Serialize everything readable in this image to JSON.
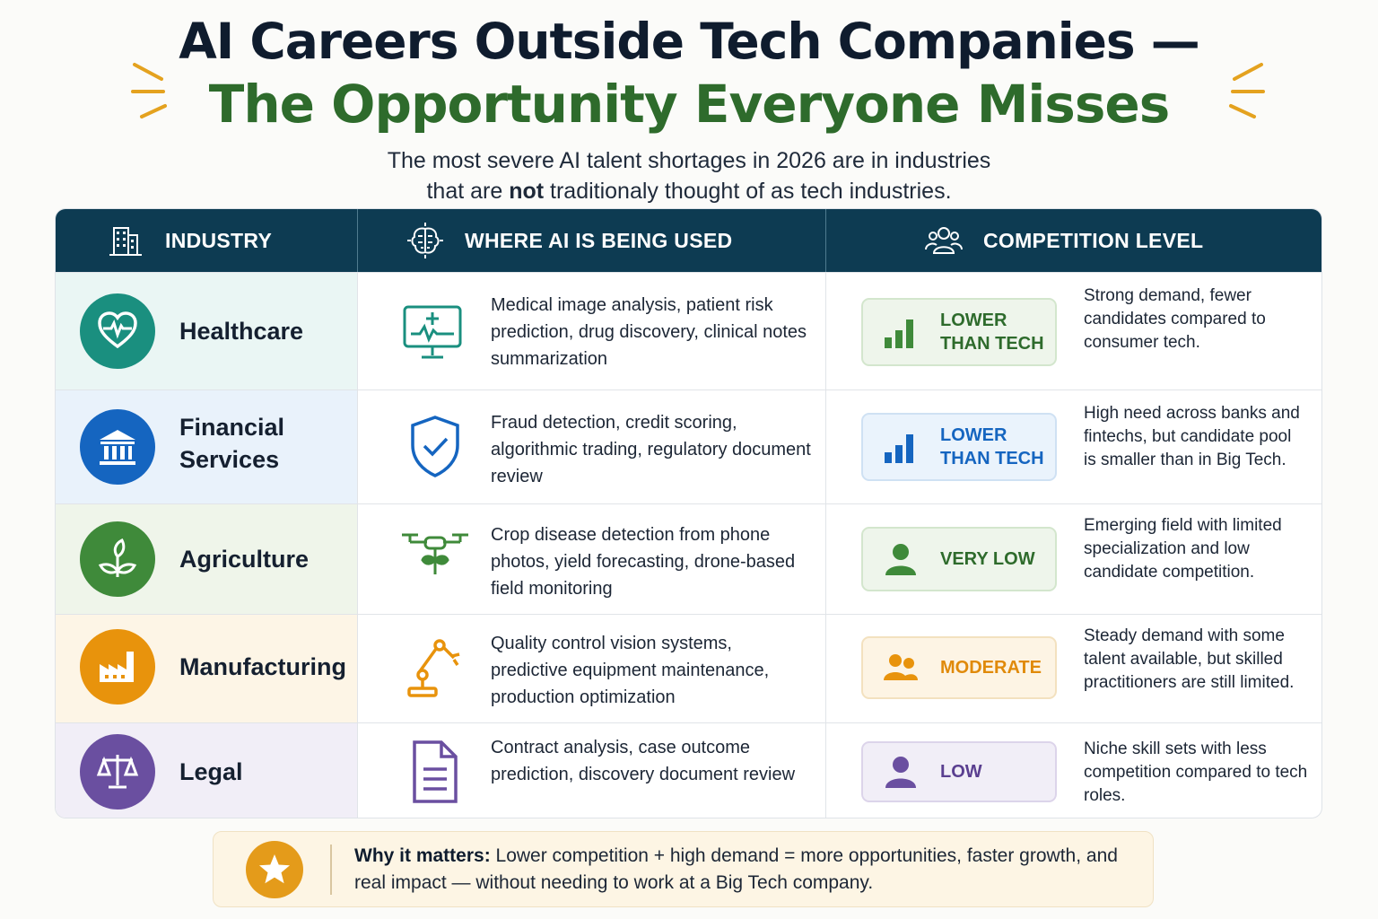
{
  "title": {
    "line1": "AI Careers Outside Tech Companies —",
    "line2": "The Opportunity Everyone Misses"
  },
  "subtitle": {
    "line1": "The most severe AI talent shortages in 2026 are in industries",
    "line2_pre": "that are ",
    "line2_bold": "not",
    "line2_post": " traditionaly thought of as tech industries."
  },
  "table": {
    "headers": {
      "industry": "INDUSTRY",
      "usage": "WHERE AI IS BEING USED",
      "competition": "COMPETITION LEVEL"
    },
    "header_icons": [
      "building-icon",
      "brain-chip-icon",
      "people-icon"
    ],
    "rows": [
      {
        "industry": "Healthcare",
        "industry_icon": "heart-pulse-icon",
        "usage": "Medical image analysis, patient risk prediction, drug discovery, clinical notes summarization",
        "usage_icon": "medical-monitor-icon",
        "level": "LOWER THAN TECH",
        "level_icon": "bar-chart-icon",
        "description": "Strong demand, fewer candidates compared to consumer tech.",
        "accent": "#1a8f7f"
      },
      {
        "industry": "Financial Services",
        "industry_icon": "bank-icon",
        "usage": "Fraud detection, credit scoring, algorithmic trading, regulatory document review",
        "usage_icon": "shield-check-icon",
        "level": "LOWER THAN TECH",
        "level_icon": "bar-chart-icon",
        "description": "High need across banks and fintechs, but candidate pool is smaller than in Big Tech.",
        "accent": "#1565c0"
      },
      {
        "industry": "Agriculture",
        "industry_icon": "plant-icon",
        "usage": "Crop disease detection from phone photos, yield forecasting, drone-based field monitoring",
        "usage_icon": "drone-icon",
        "level": "VERY LOW",
        "level_icon": "person-icon",
        "description": "Emerging field with limited specialization and low candidate competition.",
        "accent": "#3f8a3a"
      },
      {
        "industry": "Manufacturing",
        "industry_icon": "factory-icon",
        "usage": "Quality control vision systems, predictive equipment maintenance, production optimization",
        "usage_icon": "robot-arm-icon",
        "level": "MODERATE",
        "level_icon": "two-people-icon",
        "description": "Steady demand with some talent available, but skilled practitioners are still limited.",
        "accent": "#e8930c"
      },
      {
        "industry": "Legal",
        "industry_icon": "scales-icon",
        "usage": "Contract analysis, case outcome prediction, discovery document review",
        "usage_icon": "document-icon",
        "level": "LOW",
        "level_icon": "person-icon",
        "description": "Niche skill sets with less competition compared to tech roles.",
        "accent": "#6a4fa0"
      }
    ]
  },
  "footer": {
    "icon": "star-icon",
    "bold": "Why it matters:",
    "text": " Lower competition + high demand = more opportunities, faster growth, and real impact — without needing to work at a Big Tech company."
  }
}
